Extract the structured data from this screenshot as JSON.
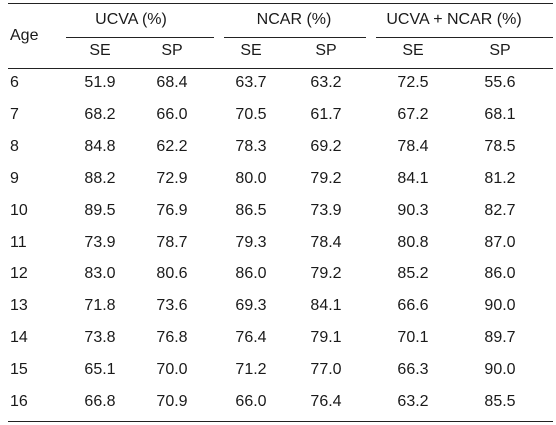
{
  "table": {
    "row_header": "Age",
    "groups": [
      {
        "label": "UCVA (%)",
        "sub": [
          "SE",
          "SP"
        ]
      },
      {
        "label": "NCAR (%)",
        "sub": [
          "SE",
          "SP"
        ]
      },
      {
        "label": "UCVA + NCAR (%)",
        "sub": [
          "SE",
          "SP"
        ]
      }
    ],
    "rows": [
      {
        "age": "6",
        "values": [
          "51.9",
          "68.4",
          "63.7",
          "63.2",
          "72.5",
          "55.6"
        ]
      },
      {
        "age": "7",
        "values": [
          "68.2",
          "66.0",
          "70.5",
          "61.7",
          "67.2",
          "68.1"
        ]
      },
      {
        "age": "8",
        "values": [
          "84.8",
          "62.2",
          "78.3",
          "69.2",
          "78.4",
          "78.5"
        ]
      },
      {
        "age": "9",
        "values": [
          "88.2",
          "72.9",
          "80.0",
          "79.2",
          "84.1",
          "81.2"
        ]
      },
      {
        "age": "10",
        "values": [
          "89.5",
          "76.9",
          "86.5",
          "73.9",
          "90.3",
          "82.7"
        ]
      },
      {
        "age": "11",
        "values": [
          "73.9",
          "78.7",
          "79.3",
          "78.4",
          "80.8",
          "87.0"
        ]
      },
      {
        "age": "12",
        "values": [
          "83.0",
          "80.6",
          "86.0",
          "79.2",
          "85.2",
          "86.0"
        ]
      },
      {
        "age": "13",
        "values": [
          "71.8",
          "73.6",
          "69.3",
          "84.1",
          "66.6",
          "90.0"
        ]
      },
      {
        "age": "14",
        "values": [
          "73.8",
          "76.8",
          "76.4",
          "79.1",
          "70.1",
          "89.7"
        ]
      },
      {
        "age": "15",
        "values": [
          "65.1",
          "70.0",
          "71.2",
          "77.0",
          "66.3",
          "90.0"
        ]
      },
      {
        "age": "16",
        "values": [
          "66.8",
          "70.9",
          "66.0",
          "76.4",
          "63.2",
          "85.5"
        ]
      }
    ]
  }
}
